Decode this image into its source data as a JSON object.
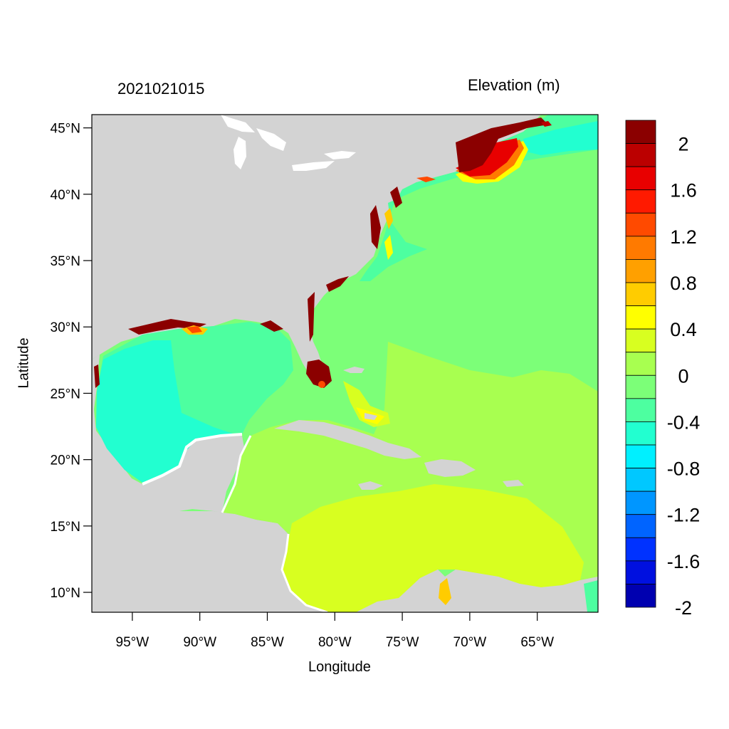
{
  "timestamp": "2021021015",
  "variable_label": "Elevation (m)",
  "axes": {
    "xlabel": "Longitude",
    "ylabel": "Latitude",
    "lon_range": [
      -98,
      -60.5
    ],
    "lat_range": [
      8.5,
      46
    ],
    "x_ticks": [
      "95°W",
      "90°W",
      "85°W",
      "80°W",
      "75°W",
      "70°W",
      "65°W"
    ],
    "x_tick_values": [
      -95,
      -90,
      -85,
      -80,
      -75,
      -70,
      -65
    ],
    "y_ticks": [
      "45°N",
      "40°N",
      "35°N",
      "30°N",
      "25°N",
      "20°N",
      "15°N",
      "10°N"
    ],
    "y_tick_values": [
      45,
      40,
      35,
      30,
      25,
      20,
      15,
      10
    ]
  },
  "colorbar": {
    "labels": [
      "2",
      "1.6",
      "1.2",
      "0.8",
      "0.4",
      "0",
      "-0.4",
      "-0.8",
      "-1.2",
      "-1.6",
      "-2"
    ],
    "colors_top_to_bottom": [
      "#8b0000",
      "#bb0000",
      "#e80000",
      "#ff1a00",
      "#ff4a00",
      "#ff7a00",
      "#ffa000",
      "#ffcc00",
      "#ffff00",
      "#d8ff20",
      "#a8ff50",
      "#7cff78",
      "#4dffa0",
      "#22ffd0",
      "#00f0ff",
      "#00c8ff",
      "#0096ff",
      "#0064ff",
      "#0032ff",
      "#0010e0",
      "#0000b0"
    ]
  },
  "colors": {
    "land": "#d3d3d3",
    "water_boundary": "#ffffff"
  }
}
